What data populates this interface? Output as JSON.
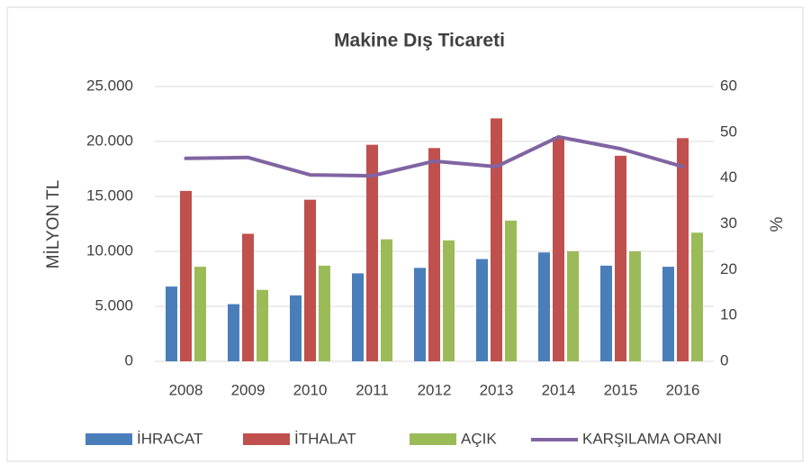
{
  "chart_data": {
    "type": "bar",
    "title": "Makine Dış Ticareti",
    "ylabel": "MİLYON TL",
    "y2label": "%",
    "categories": [
      "2008",
      "2009",
      "2010",
      "2011",
      "2012",
      "2013",
      "2014",
      "2015",
      "2016"
    ],
    "series": [
      {
        "name": "İHRACAT",
        "color": "#4a7ebb",
        "type": "bar",
        "values": [
          6800,
          5200,
          6000,
          8000,
          8500,
          9300,
          9900,
          8700,
          8600
        ]
      },
      {
        "name": "İTHALAT",
        "color": "#c0504d",
        "type": "bar",
        "values": [
          15500,
          11600,
          14700,
          19700,
          19400,
          22100,
          20400,
          18700,
          20300
        ]
      },
      {
        "name": "AÇIK",
        "color": "#9bbb59",
        "type": "bar",
        "values": [
          8600,
          6500,
          8700,
          11100,
          11000,
          12800,
          10000,
          10000,
          11700
        ]
      },
      {
        "name": "KARŞILAMA ORANI",
        "color": "#8064a2",
        "type": "line",
        "axis": "y2",
        "values": [
          44.3,
          44.5,
          40.7,
          40.5,
          43.7,
          42.5,
          49.0,
          46.4,
          42.5
        ]
      }
    ],
    "ylim": [
      0,
      25000
    ],
    "yticks": [
      0,
      {
        "value": 5000,
        "label": "5.000"
      },
      {
        "value": 10000,
        "label": "10.000"
      },
      {
        "value": 15000,
        "label": "15.000"
      },
      {
        "value": 20000,
        "label": "20.000"
      },
      {
        "value": 25000,
        "label": "25.000"
      }
    ],
    "y2lim": [
      0,
      60
    ],
    "y2ticks": [
      0,
      10,
      20,
      30,
      40,
      50,
      60
    ],
    "legend": "bottom"
  }
}
